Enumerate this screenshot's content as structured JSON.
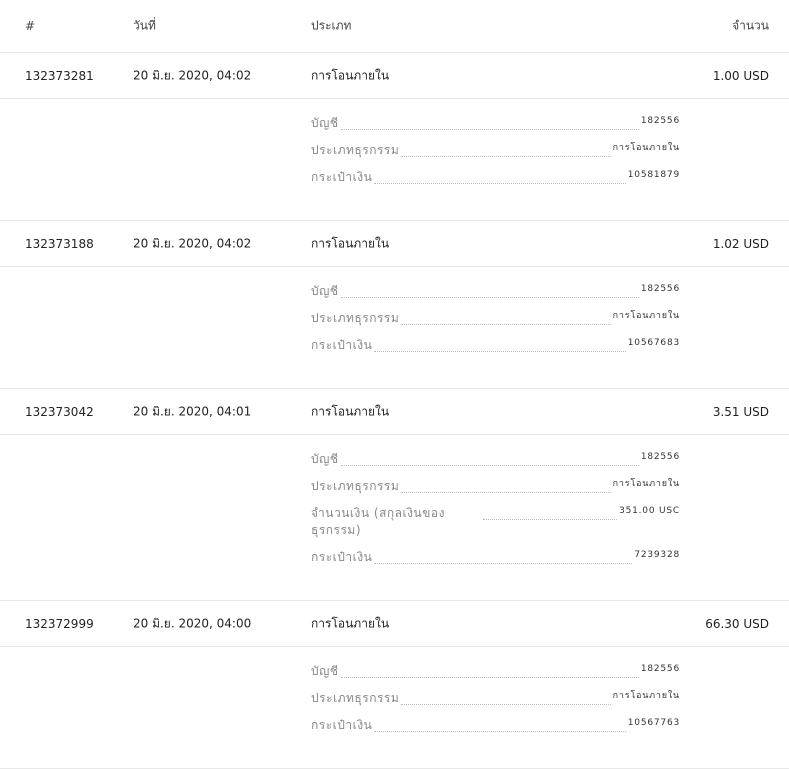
{
  "header": {
    "id": "#",
    "date": "วันที่",
    "type": "ประเภท",
    "amount": "จำนวน"
  },
  "transactions": [
    {
      "id": "132373281",
      "date": "20 มิ.ย. 2020, 04:02",
      "type": "การโอนภายใน",
      "amount": "1.00 USD",
      "details": [
        {
          "label": "บัญชี",
          "value": "182556"
        },
        {
          "label": "ประเภทธุรกรรม",
          "value": "การโอนภายใน"
        },
        {
          "label": "กระเป๋าเงิน",
          "value": "10581879"
        }
      ]
    },
    {
      "id": "132373188",
      "date": "20 มิ.ย. 2020, 04:02",
      "type": "การโอนภายใน",
      "amount": "1.02 USD",
      "details": [
        {
          "label": "บัญชี",
          "value": "182556"
        },
        {
          "label": "ประเภทธุรกรรม",
          "value": "การโอนภายใน"
        },
        {
          "label": "กระเป๋าเงิน",
          "value": "10567683"
        }
      ]
    },
    {
      "id": "132373042",
      "date": "20 มิ.ย. 2020, 04:01",
      "type": "การโอนภายใน",
      "amount": "3.51 USD",
      "details": [
        {
          "label": "บัญชี",
          "value": "182556"
        },
        {
          "label": "ประเภทธุรกรรม",
          "value": "การโอนภายใน"
        },
        {
          "label": "จำนวนเงิน (สกุลเงินของธุรกรรม)",
          "value": "351.00 USC"
        },
        {
          "label": "กระเป๋าเงิน",
          "value": "7239328"
        }
      ]
    },
    {
      "id": "132372999",
      "date": "20 มิ.ย. 2020, 04:00",
      "type": "การโอนภายใน",
      "amount": "66.30 USD",
      "details": [
        {
          "label": "บัญชี",
          "value": "182556"
        },
        {
          "label": "ประเภทธุรกรรม",
          "value": "การโอนภายใน"
        },
        {
          "label": "กระเป๋าเงิน",
          "value": "10567763"
        }
      ]
    }
  ]
}
